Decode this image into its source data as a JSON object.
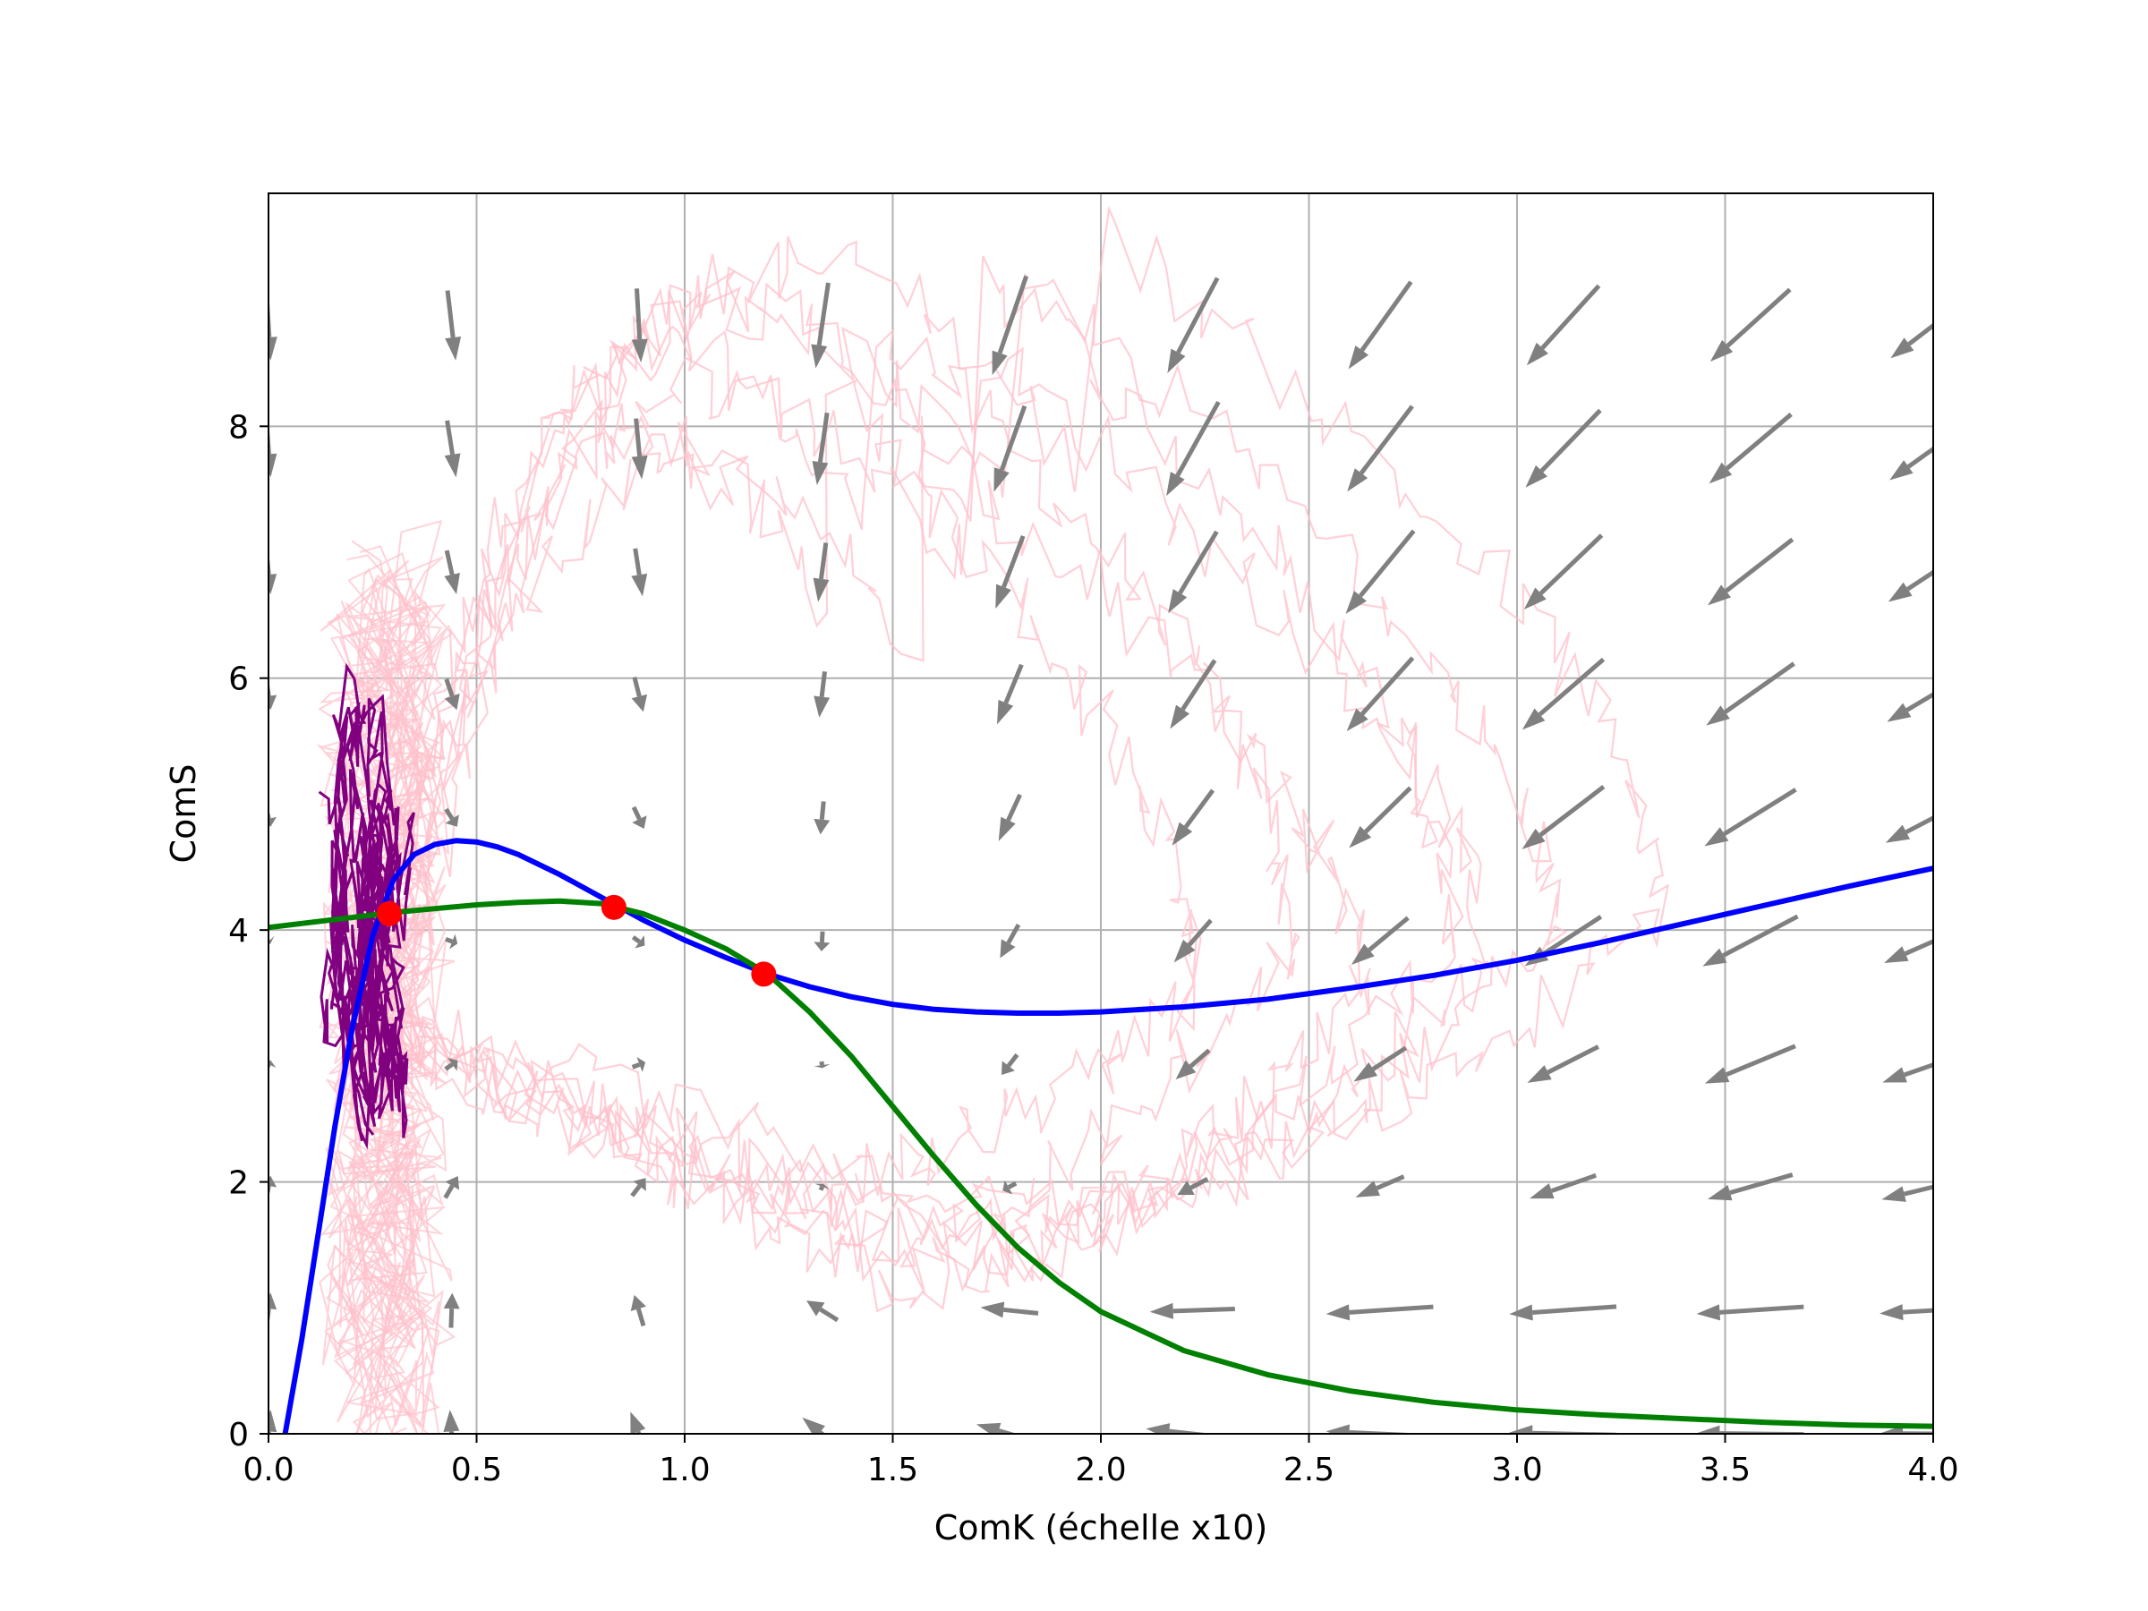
{
  "chart_data": {
    "type": "line",
    "title": "",
    "xlabel": "ComK (échelle x10)",
    "ylabel": "ComS",
    "xlim": [
      0,
      4
    ],
    "ylim": [
      0,
      9.85
    ],
    "grid": true,
    "xticks": [
      "0.0",
      "0.5",
      "1.0",
      "1.5",
      "2.0",
      "2.5",
      "3.0",
      "3.5",
      "4.0"
    ],
    "yticks": [
      "0",
      "2",
      "4",
      "6",
      "8"
    ],
    "colors": {
      "nullcline_blue": "#0000ff",
      "nullcline_green": "#008000",
      "fixed_points": "#ff0000",
      "trajectory": "#800080",
      "background_trajectories": "#ffc0cb",
      "vector_field": "#808080",
      "grid": "#b0b0b0"
    },
    "series": [
      {
        "role": "nullcline_blue",
        "x": [
          0.04,
          0.08,
          0.12,
          0.16,
          0.2,
          0.25,
          0.3,
          0.35,
          0.4,
          0.45,
          0.5,
          0.55,
          0.6,
          0.7,
          0.8,
          0.9,
          1.0,
          1.1,
          1.2,
          1.3,
          1.4,
          1.5,
          1.6,
          1.7,
          1.8,
          1.9,
          2.0,
          2.2,
          2.4,
          2.6,
          2.8,
          3.0,
          3.2,
          3.4,
          3.6,
          3.8,
          4.0
        ],
        "y": [
          0.0,
          0.75,
          1.6,
          2.45,
          3.2,
          3.95,
          4.4,
          4.6,
          4.68,
          4.71,
          4.7,
          4.66,
          4.6,
          4.44,
          4.26,
          4.08,
          3.92,
          3.78,
          3.65,
          3.55,
          3.47,
          3.41,
          3.37,
          3.35,
          3.34,
          3.34,
          3.35,
          3.39,
          3.45,
          3.54,
          3.64,
          3.76,
          3.9,
          4.05,
          4.2,
          4.35,
          4.49
        ]
      },
      {
        "role": "nullcline_green",
        "x": [
          0.0,
          0.1,
          0.2,
          0.3,
          0.4,
          0.5,
          0.6,
          0.7,
          0.8,
          0.9,
          1.0,
          1.1,
          1.2,
          1.3,
          1.4,
          1.5,
          1.6,
          1.7,
          1.8,
          1.9,
          2.0,
          2.2,
          2.4,
          2.6,
          2.8,
          3.0,
          3.2,
          3.4,
          3.6,
          3.8,
          4.0
        ],
        "y": [
          4.02,
          4.06,
          4.1,
          4.14,
          4.17,
          4.2,
          4.22,
          4.23,
          4.21,
          4.13,
          4.0,
          3.85,
          3.65,
          3.35,
          3.0,
          2.6,
          2.2,
          1.82,
          1.48,
          1.2,
          0.97,
          0.66,
          0.47,
          0.34,
          0.25,
          0.19,
          0.15,
          0.12,
          0.09,
          0.07,
          0.06
        ]
      }
    ],
    "fixed_points": [
      {
        "x": 0.29,
        "y": 4.13
      },
      {
        "x": 0.83,
        "y": 4.18
      },
      {
        "x": 1.19,
        "y": 3.65
      }
    ]
  }
}
